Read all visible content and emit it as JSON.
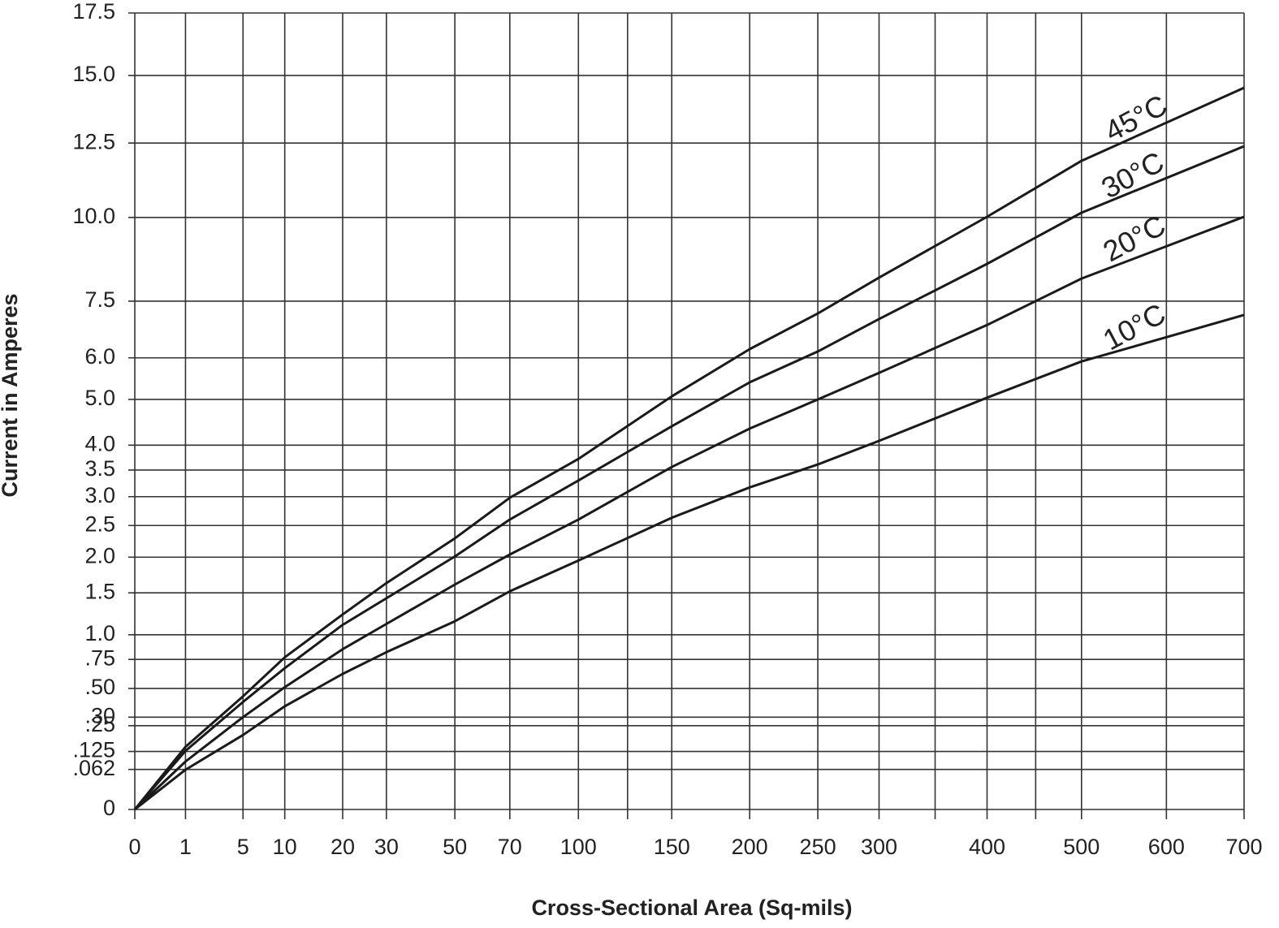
{
  "chart_data": {
    "type": "line",
    "x_label": "Cross-Sectional Area (Sq-mils)",
    "y_label": "Current in Amperes",
    "x": [
      0,
      1,
      5,
      10,
      20,
      30,
      50,
      70,
      100,
      150,
      200,
      250,
      300,
      400,
      500,
      700
    ],
    "xlim": [
      0,
      700
    ],
    "xticks": [
      0,
      1,
      5,
      10,
      20,
      30,
      50,
      70,
      100,
      150,
      200,
      250,
      300,
      400,
      500,
      600,
      700
    ],
    "x_minor_ticks": [
      125,
      350,
      450
    ],
    "ylim": [
      0,
      17.5
    ],
    "yticks": [
      0,
      {
        "value": 0.062,
        "label": ".062"
      },
      {
        "value": 0.125,
        "label": ".125"
      },
      {
        "value": 0.25,
        "label": ".25"
      },
      {
        "value": 0.3,
        "label": ".30"
      },
      {
        "value": 0.5,
        "label": ".50"
      },
      {
        "value": 0.75,
        "label": ".75"
      },
      {
        "value": 1,
        "label": "1.0"
      },
      1.5,
      {
        "value": 2,
        "label": "2.0"
      },
      2.5,
      {
        "value": 3,
        "label": "3.0"
      },
      3.5,
      {
        "value": 4,
        "label": "4.0"
      },
      {
        "value": 5,
        "label": "5.0"
      },
      {
        "value": 6,
        "label": "6.0"
      },
      7.5,
      {
        "value": 10,
        "label": "10.0"
      },
      12.5,
      {
        "value": 15,
        "label": "15.0"
      },
      17.5
    ],
    "grid": true,
    "series": [
      {
        "name": "45°C",
        "color": "#1a1a1a",
        "values": [
          0,
          0.144,
          0.44,
          0.77,
          1.23,
          1.63,
          2.29,
          2.98,
          3.72,
          5.07,
          6.22,
          7.16,
          8.17,
          10.02,
          11.88,
          14.53
        ]
      },
      {
        "name": "30°C",
        "color": "#1a1a1a",
        "values": [
          0,
          0.127,
          0.4,
          0.67,
          1.11,
          1.43,
          2.01,
          2.6,
          3.3,
          4.4,
          5.4,
          6.16,
          7.01,
          8.57,
          10.15,
          12.39
        ]
      },
      {
        "name": "20°C",
        "color": "#1a1a1a",
        "values": [
          0,
          0.087,
          0.3,
          0.51,
          0.85,
          1.12,
          1.61,
          2.04,
          2.6,
          3.56,
          4.35,
          5.0,
          5.63,
          6.85,
          8.14,
          10.02
        ]
      },
      {
        "name": "10°C",
        "color": "#1a1a1a",
        "values": [
          0,
          0.061,
          0.2,
          0.37,
          0.62,
          0.82,
          1.15,
          1.52,
          1.95,
          2.63,
          3.17,
          3.61,
          4.09,
          5.04,
          5.91,
          7.12
        ]
      }
    ]
  }
}
